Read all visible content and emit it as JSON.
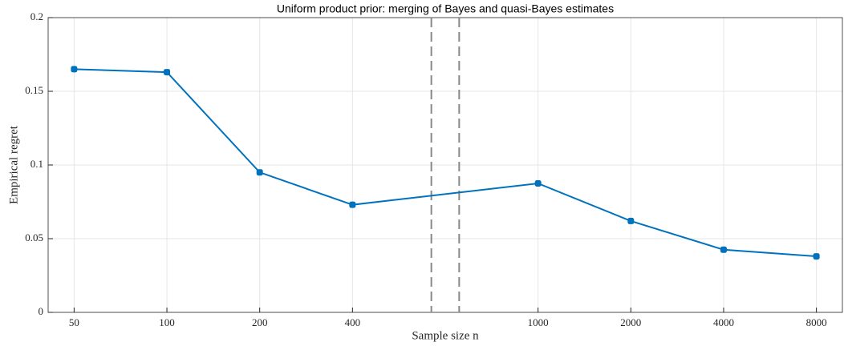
{
  "chart_data": {
    "type": "line",
    "title": "Uniform product prior: merging of Bayes and quasi-Bayes estimates",
    "x_label": "Sample size n",
    "y_label": "Empirical regret",
    "categories": [
      "50",
      "100",
      "200",
      "400",
      "1000",
      "2000",
      "4000",
      "8000"
    ],
    "series": [
      {
        "name": "Empirical regret",
        "color": "#0072bd",
        "values": [
          0.165,
          0.163,
          0.095,
          0.073,
          0.0875,
          0.062,
          0.0425,
          0.038
        ]
      }
    ],
    "ylim": [
      0,
      0.2
    ],
    "yticks": [
      0,
      0.05,
      0.1,
      0.15,
      0.2
    ],
    "grid": true,
    "axis_break": true
  }
}
